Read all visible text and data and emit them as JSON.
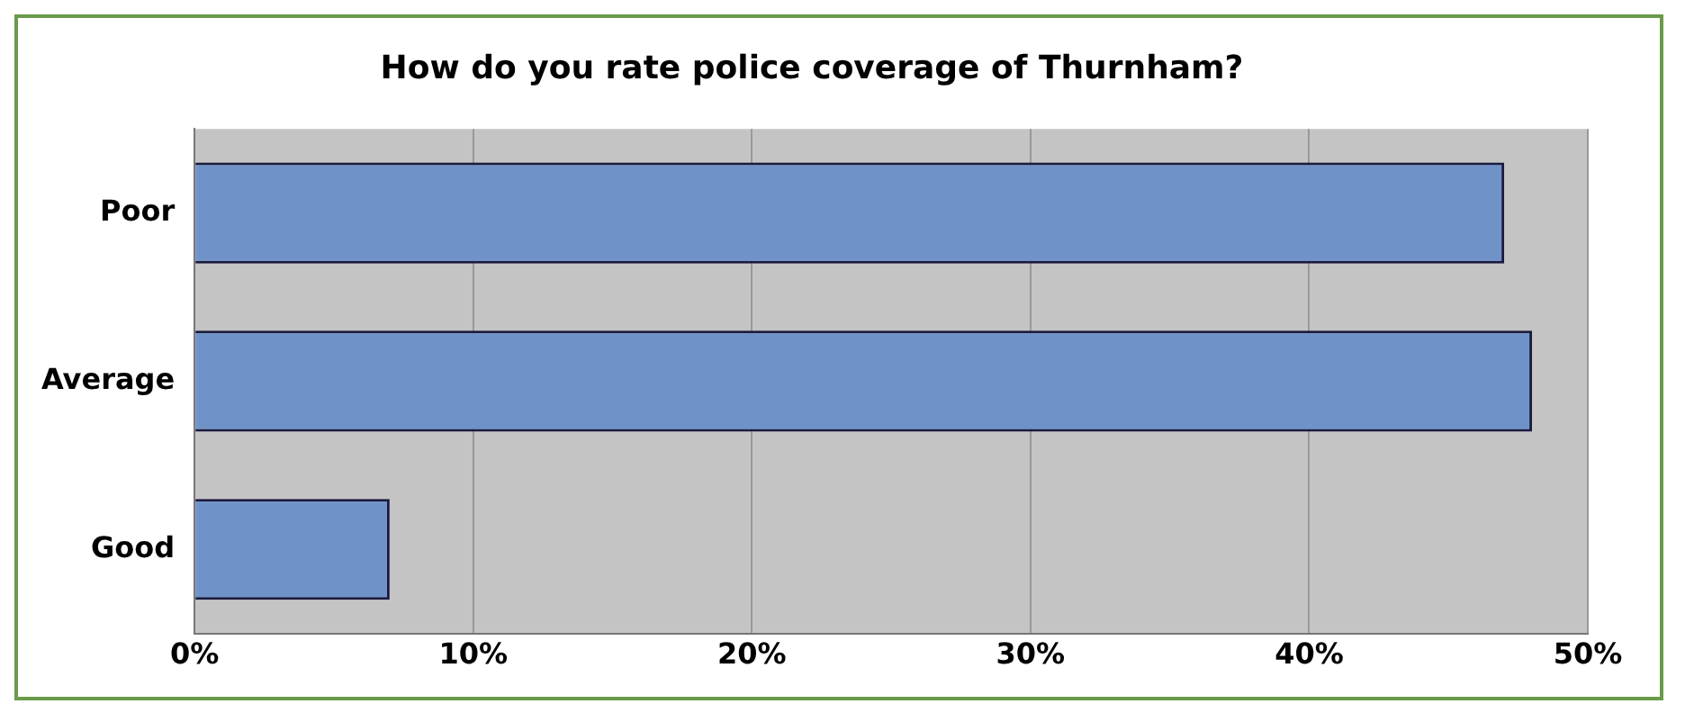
{
  "chart_data": {
    "type": "bar",
    "orientation": "horizontal",
    "title": "How do you rate police coverage of Thurnham?",
    "categories": [
      "Poor",
      "Average",
      "Good"
    ],
    "series": [
      {
        "color": "#6f93c8",
        "values": [
          47,
          48,
          7
        ]
      }
    ],
    "xlim": [
      0,
      50
    ],
    "xticks": [
      {
        "value": 0,
        "label": "0%"
      },
      {
        "value": 10,
        "label": "10%"
      },
      {
        "value": 20,
        "label": "20%"
      },
      {
        "value": 30,
        "label": "30%"
      },
      {
        "value": 40,
        "label": "40%"
      },
      {
        "value": 50,
        "label": "50%"
      }
    ],
    "grid": "x",
    "legend": false
  }
}
